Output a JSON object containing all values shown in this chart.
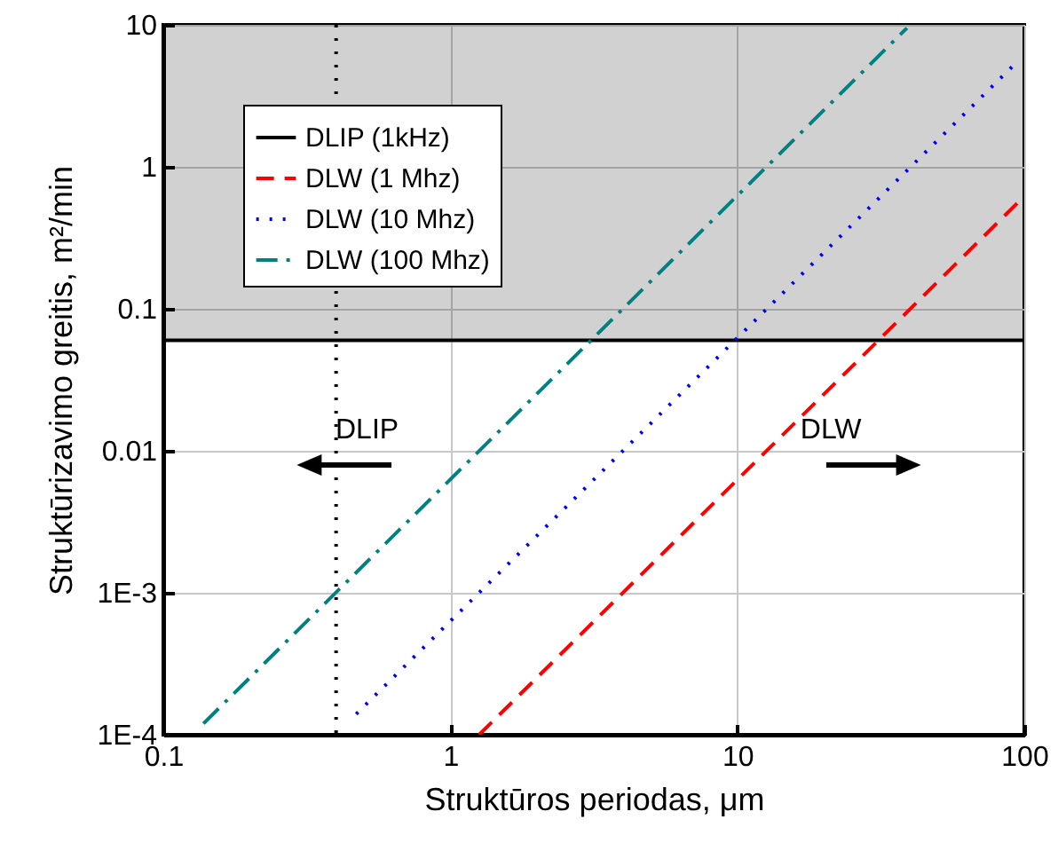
{
  "chart_data": {
    "type": "line",
    "xlabel": "Struktūros periodas, μm",
    "ylabel": "Struktūrizavimo greitis, m²/min",
    "log": "xy",
    "xlim": [
      0.1,
      100
    ],
    "ylim": [
      0.0001,
      10
    ],
    "xticks": [
      0.1,
      1,
      10,
      100
    ],
    "yticks": [
      {
        "value": 0.0001,
        "label": "1E-4"
      },
      {
        "value": 0.001,
        "label": "1E-3"
      },
      0.01,
      0.1,
      1,
      10
    ],
    "grid": true,
    "legend": "top left",
    "annotations": [
      "DLIP",
      "DLW"
    ],
    "ref_lines": [
      {
        "axis": "x",
        "value": 0.4,
        "color": "#000000",
        "line_style": "dotted"
      }
    ],
    "bands": [
      {
        "axis": "y",
        "from": 0.06,
        "to": 10,
        "color": "#000000"
      }
    ],
    "series": [
      {
        "name": "DLIP (1kHz)",
        "color": "#000000",
        "line_style": "solid",
        "x": [
          0.1,
          100
        ],
        "values": [
          0.06,
          0.06
        ]
      },
      {
        "name": "DLW (1 Mhz)",
        "color": "#ff0000",
        "line_style": "dashed",
        "x": [
          1.26,
          95
        ],
        "values": [
          0.0001,
          0.56
        ]
      },
      {
        "name": "DLW (10 Mhz)",
        "color": "#0000ff",
        "line_style": "dotted",
        "x": [
          0.47,
          91
        ],
        "values": [
          0.00014,
          5.1
        ]
      },
      {
        "name": "DLW (100 Mhz)",
        "color": "#008080",
        "line_style": "dashdot",
        "x": [
          0.138,
          39
        ],
        "values": [
          0.00012,
          9.5
        ]
      }
    ]
  }
}
